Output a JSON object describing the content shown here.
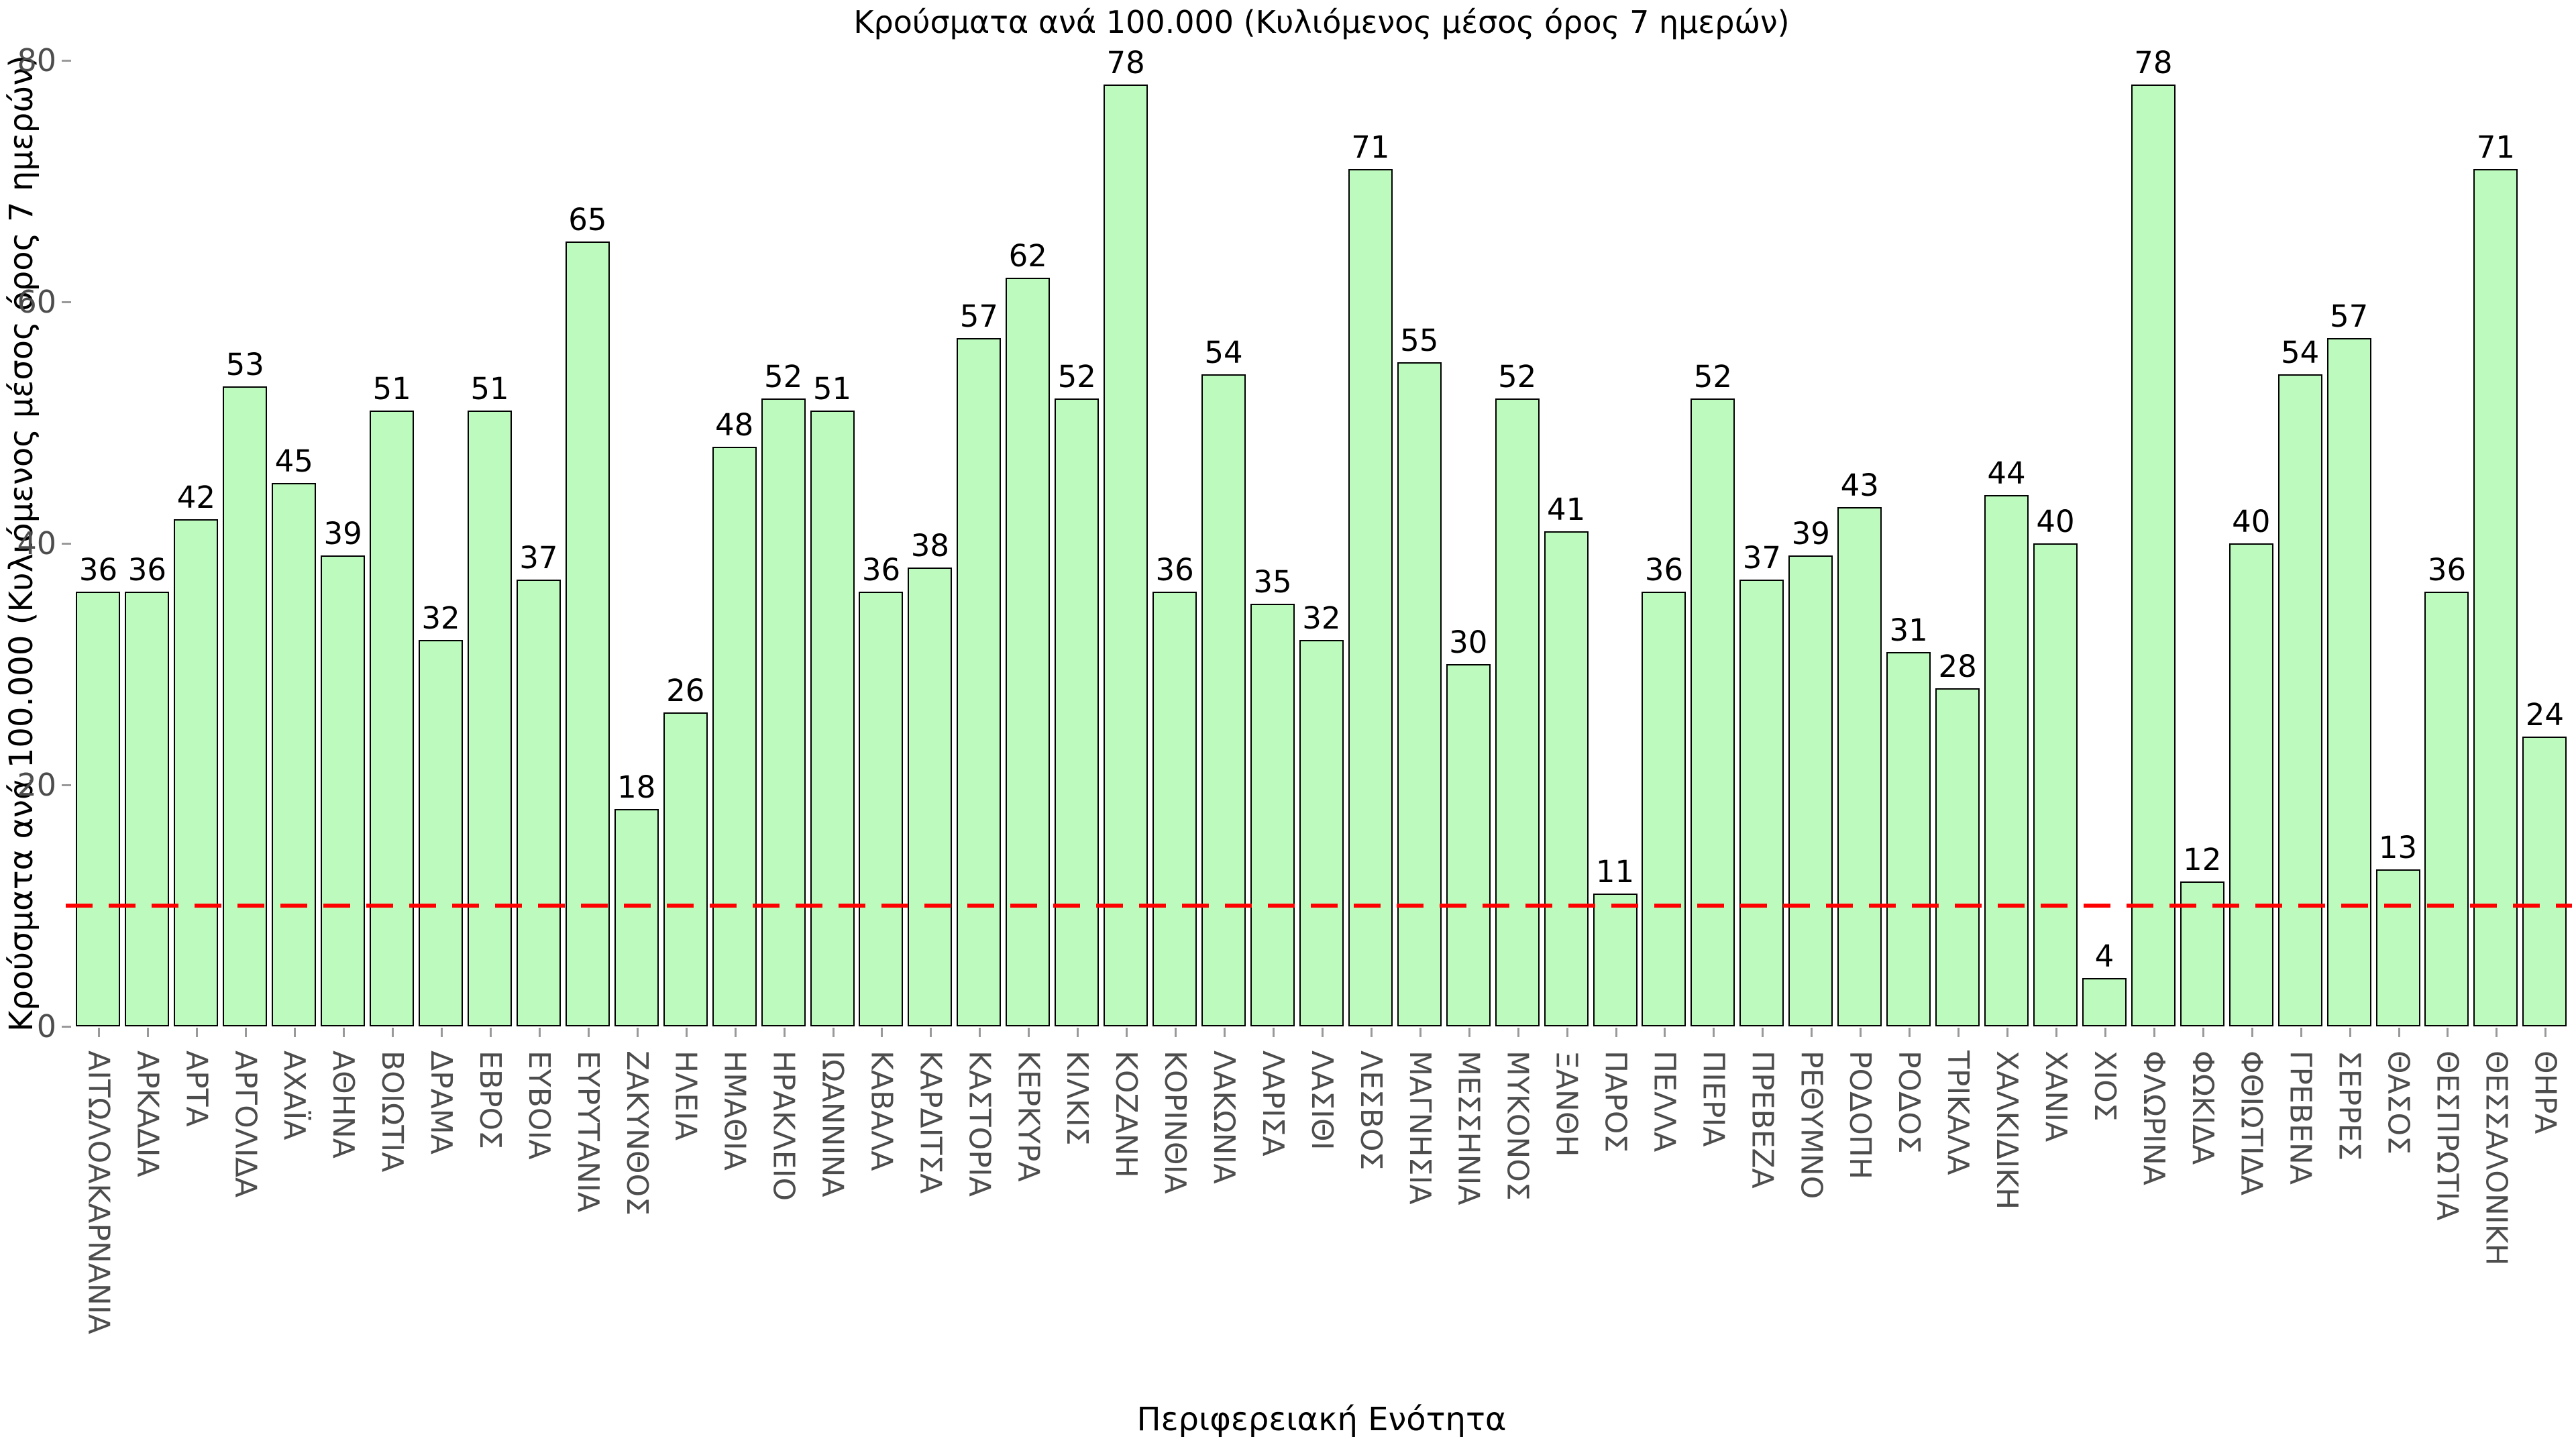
{
  "chart_data": {
    "type": "bar",
    "title": "Κρούσματα ανά 100.000 (Κυλιόμενος μέσος όρος 7 ημερών)",
    "ylabel": "Κρούσματα ανά 100.000 (Κυλιόμενος μέσος όρος 7 ημερών)",
    "xlabel": "Περιφερειακή Ενότητα",
    "categories": [
      "ΑΙΤΩΛΟΑΚΑΡΝΑΝΙΑ",
      "ΑΡΚΑΔΙΑ",
      "ΑΡΤΑ",
      "ΑΡΓΟΛΙΔΑ",
      "ΑΧΑΪΑ",
      "ΑΘΗΝΑ",
      "ΒΟΙΩΤΙΑ",
      "ΔΡΑΜΑ",
      "ΕΒΡΟΣ",
      "ΕΥΒΟΙΑ",
      "ΕΥΡΥΤΑΝΙΑ",
      "ΖΑΚΥΝΘΟΣ",
      "ΗΛΕΙΑ",
      "ΗΜΑΘΙΑ",
      "ΗΡΑΚΛΕΙΟ",
      "ΙΩΑΝΝΙΝΑ",
      "ΚΑΒΑΛΑ",
      "ΚΑΡΔΙΤΣΑ",
      "ΚΑΣΤΟΡΙΑ",
      "ΚΕΡΚΥΡΑ",
      "ΚΙΛΚΙΣ",
      "ΚΟΖΑΝΗ",
      "ΚΟΡΙΝΘΙΑ",
      "ΛΑΚΩΝΙΑ",
      "ΛΑΡΙΣΑ",
      "ΛΑΣΙΘΙ",
      "ΛΕΣΒΟΣ",
      "ΜΑΓΝΗΣΙΑ",
      "ΜΕΣΣΗΝΙΑ",
      "ΜΥΚΟΝΟΣ",
      "ΞΑΝΘΗ",
      "ΠΑΡΟΣ",
      "ΠΕΛΛΑ",
      "ΠΙΕΡΙΑ",
      "ΠΡΕΒΕΖΑ",
      "ΡΕΘΥΜΝΟ",
      "ΡΟΔΟΠΗ",
      "ΡΟΔΟΣ",
      "ΤΡΙΚΑΛΑ",
      "ΧΑΛΚΙΔΙΚΗ",
      "ΧΑΝΙΑ",
      "ΧΙΟΣ",
      "ΦΛΩΡΙΝΑ",
      "ΦΩΚΙΔΑ",
      "ΦΘΙΩΤΙΔΑ",
      "ΓΡΕΒΕΝΑ",
      "ΣΕΡΡΕΣ",
      "ΘΑΣΟΣ",
      "ΘΕΣΠΡΩΤΙΑ",
      "ΘΕΣΣΑΛΟΝΙΚΗ",
      "ΘΗΡΑ"
    ],
    "values": [
      36,
      36,
      42,
      53,
      45,
      39,
      51,
      32,
      51,
      37,
      65,
      18,
      26,
      48,
      52,
      51,
      36,
      38,
      57,
      62,
      52,
      78,
      36,
      54,
      35,
      32,
      71,
      55,
      30,
      52,
      41,
      11,
      36,
      52,
      37,
      39,
      43,
      31,
      28,
      44,
      40,
      4,
      78,
      12,
      40,
      54,
      57,
      13,
      36,
      71,
      24
    ],
    "ylim": [
      0,
      80
    ],
    "yticks": [
      0,
      20,
      40,
      60,
      80
    ],
    "threshold_value": 10,
    "grid": "off",
    "legend": "none",
    "colors": {
      "bar_fill": "#bdfabd",
      "bar_edge": "#000000",
      "value_label": "#000000",
      "tick_label": "#4d4d4d",
      "axis_title": "#000000",
      "threshold": "#ff0000",
      "background": "#ffffff"
    }
  }
}
